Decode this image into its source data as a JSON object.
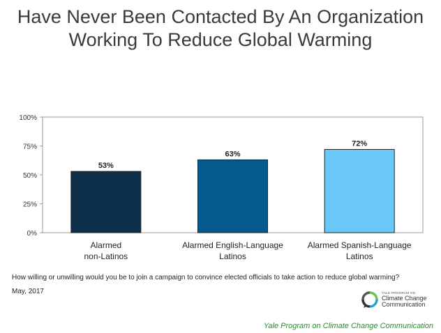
{
  "title_line1": "Have Never Been Contacted By An Organization",
  "title_line2": "Working To Reduce Global Warming",
  "chart_data": {
    "type": "bar",
    "categories": [
      [
        "Alarmed",
        "non-Latinos"
      ],
      [
        "Alarmed English-Language",
        "Latinos"
      ],
      [
        "Alarmed Spanish-Language",
        "Latinos"
      ]
    ],
    "values": [
      53,
      63,
      72
    ],
    "data_labels": [
      "53%",
      "63%",
      "72%"
    ],
    "bar_colors": [
      "#0e2f4a",
      "#045a8d",
      "#69c8f7"
    ],
    "ylim": [
      0,
      100
    ],
    "yticks": [
      0,
      25,
      50,
      75,
      100
    ],
    "ytick_labels": [
      "0%",
      "25%",
      "50%",
      "75%",
      "100%"
    ],
    "grid": false
  },
  "question": "How willing or unwilling would you be to join a campaign to convince elected officials to take action to reduce global warming?",
  "date": "May, 2017",
  "logo": {
    "small_text": "YALE PROGRAM ON",
    "line1": "Climate Change",
    "line2": "Communication"
  },
  "footer_credit": "Yale Program on Climate Change Communication"
}
